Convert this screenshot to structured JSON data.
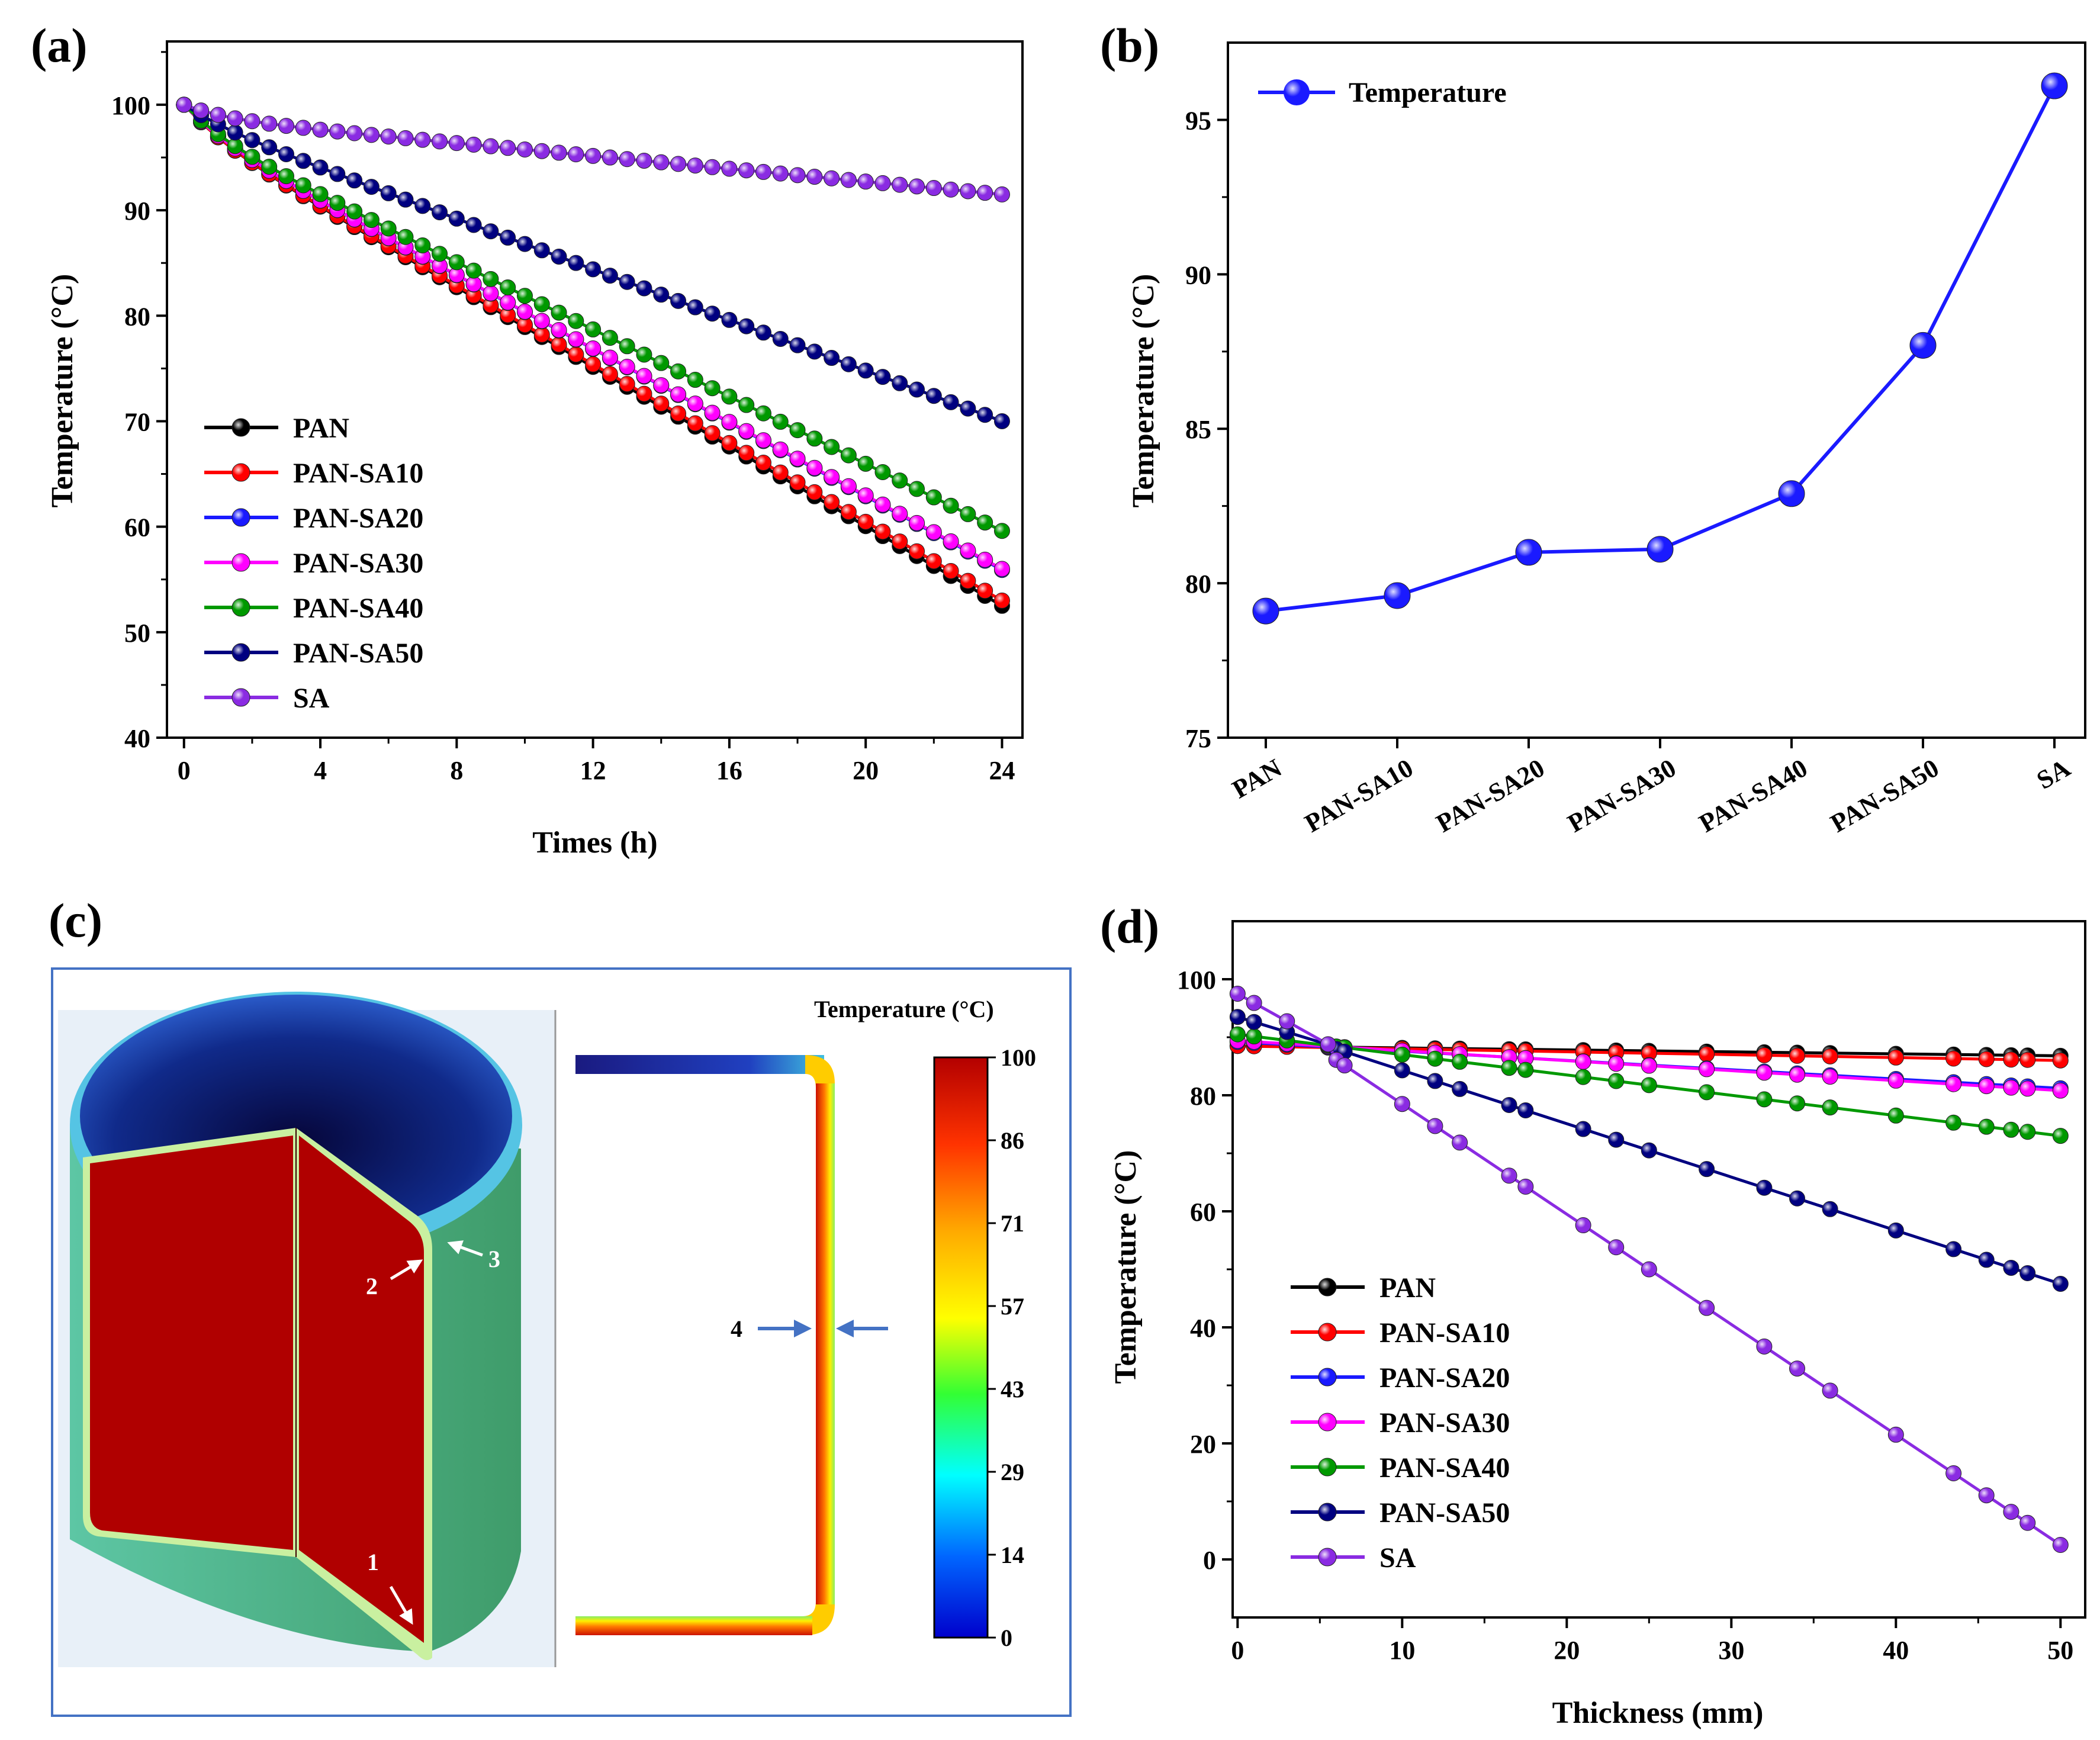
{
  "colors": {
    "PAN": "#000000",
    "PAN-SA10": "#ff0000",
    "PAN-SA20": "#1a1aff",
    "PAN-SA30": "#ff00ff",
    "PAN-SA40": "#009900",
    "PAN-SA50": "#000080",
    "SA": "#8a2be2"
  },
  "chart_data": [
    {
      "panel": "(a)",
      "type": "line",
      "xlabel": "Times (h)",
      "ylabel": "Temperature (°C)",
      "xlim": [
        -0.5,
        24.6
      ],
      "ylim": [
        40,
        106
      ],
      "xticks": [
        0,
        4,
        8,
        12,
        16,
        20,
        24
      ],
      "yticks": [
        40,
        50,
        60,
        70,
        80,
        90,
        100
      ],
      "legend": "bottom-left",
      "x": {
        "start": 0,
        "end": 24,
        "step": 0.5
      },
      "series": [
        {
          "name": "PAN",
          "start": 100,
          "end": 52.5
        },
        {
          "name": "PAN-SA10",
          "start": 100,
          "end": 53.0
        },
        {
          "name": "PAN-SA20",
          "start": 100,
          "end": 55.9
        },
        {
          "name": "PAN-SA30",
          "start": 100,
          "end": 56.0
        },
        {
          "name": "PAN-SA40",
          "start": 100,
          "end": 59.6
        },
        {
          "name": "PAN-SA50",
          "start": 100,
          "end": 70.0
        },
        {
          "name": "SA",
          "start": 100,
          "end": 91.5
        }
      ]
    },
    {
      "panel": "(b)",
      "type": "line",
      "xlabel": "",
      "ylabel": "Temperature (°C)",
      "categories": [
        "PAN",
        "PAN-SA10",
        "PAN-SA20",
        "PAN-SA30",
        "PAN-SA40",
        "PAN-SA50",
        "SA"
      ],
      "values": [
        79.1,
        79.6,
        81.0,
        81.1,
        82.9,
        87.7,
        96.1
      ],
      "ylim": [
        75,
        97.5
      ],
      "yticks": [
        75,
        80,
        85,
        90,
        95
      ],
      "legend": "top-left",
      "series_name": "Temperature",
      "color": "#1a1aff"
    },
    {
      "panel": "(d)",
      "type": "line",
      "xlabel": "Thickness (mm)",
      "ylabel": "Temperature (°C)",
      "xlim": [
        -0.3,
        51.5
      ],
      "ylim": [
        -10,
        110
      ],
      "xticks": [
        0,
        10,
        20,
        30,
        40,
        50
      ],
      "yticks": [
        0,
        20,
        40,
        60,
        80,
        100
      ],
      "legend": "bottom-left",
      "x": [
        0,
        1,
        3,
        5.5,
        6,
        6.5,
        10,
        12,
        13.5,
        16.5,
        17.5,
        21,
        23,
        25,
        28.5,
        32,
        34,
        36,
        40,
        43.5,
        45.5,
        47,
        48,
        50
      ],
      "series": [
        {
          "name": "PAN",
          "start": 88.5,
          "end": 86.8
        },
        {
          "name": "PAN-SA10",
          "start": 88.5,
          "end": 86.0
        },
        {
          "name": "PAN-SA20",
          "start": 89.2,
          "end": 81.2
        },
        {
          "name": "PAN-SA30",
          "start": 89.4,
          "end": 80.8
        },
        {
          "name": "PAN-SA40",
          "start": 90.5,
          "end": 73.0
        },
        {
          "name": "PAN-SA50",
          "start": 93.5,
          "end": 47.5
        },
        {
          "name": "SA",
          "start": 97.5,
          "end": 2.5
        }
      ]
    }
  ],
  "labels": {
    "a": "(a)",
    "b": "(b)",
    "c": "(c)",
    "d": "(d)"
  },
  "simulation": {
    "colorbar_title": "Temperature (°C)",
    "colorbar_ticks": [
      "100",
      "86",
      "71",
      "57",
      "43",
      "29",
      "14",
      "0"
    ],
    "points": [
      "1",
      "2",
      "3",
      "4"
    ]
  }
}
